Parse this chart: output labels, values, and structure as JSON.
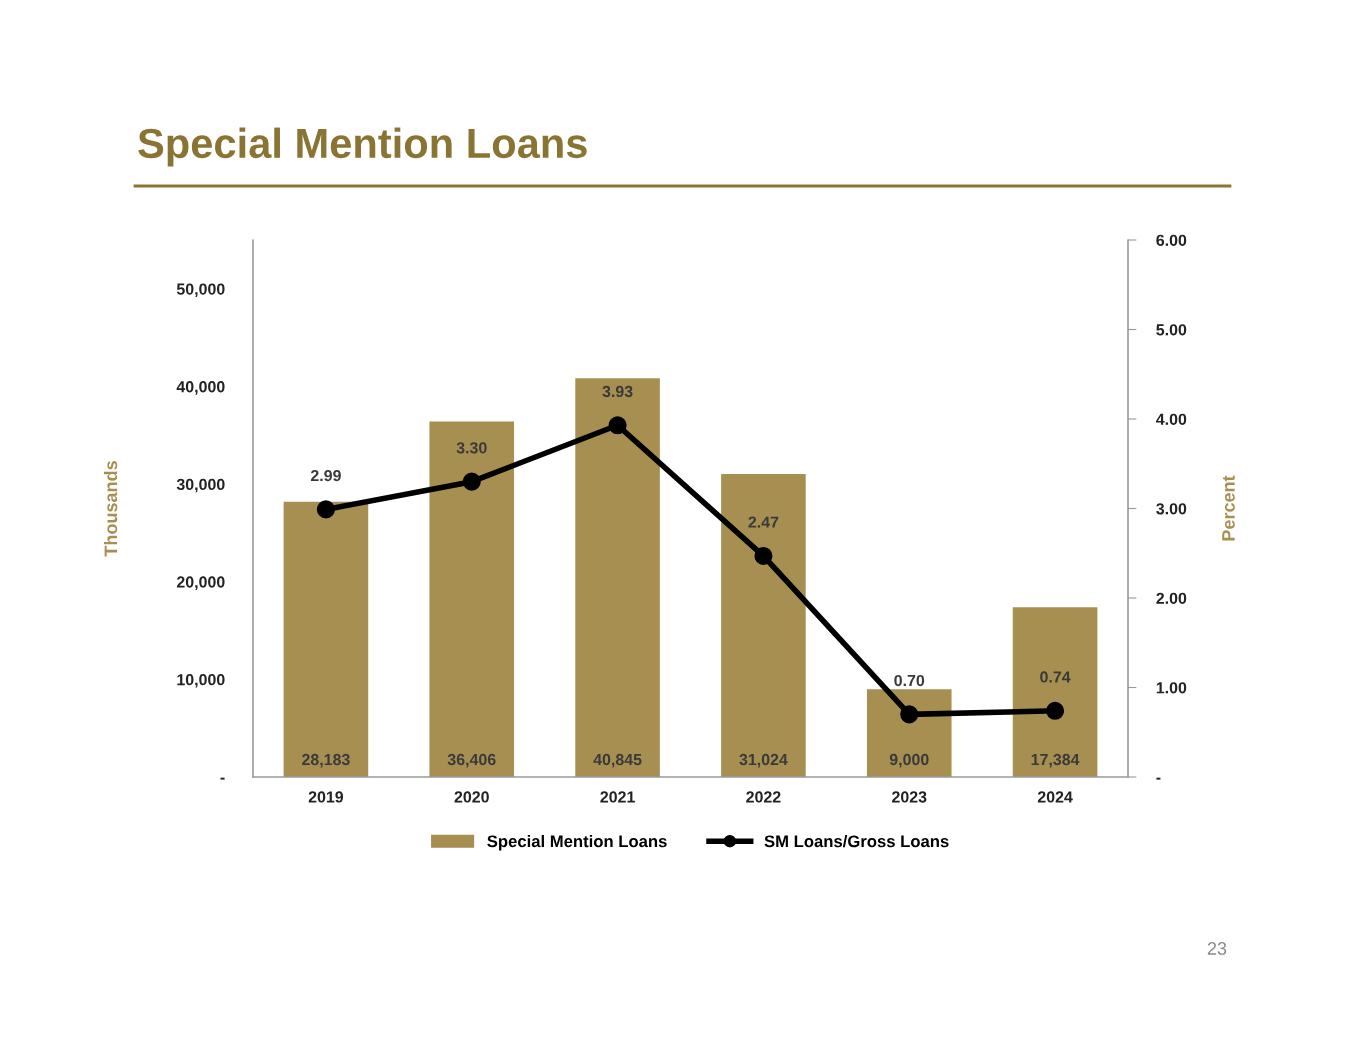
{
  "chart_data": {
    "type": "bar",
    "title": "Special Mention Loans",
    "categories": [
      "2019",
      "2020",
      "2021",
      "2022",
      "2023",
      "2024"
    ],
    "series": [
      {
        "name": "Special Mention Loans",
        "color": "#a68f50",
        "values": [
          28183,
          36406,
          40845,
          31024,
          9000,
          17384
        ],
        "value_labels": [
          "28,183",
          "36,406",
          "40,845",
          "31,024",
          "9,000",
          "17,384"
        ]
      },
      {
        "name": "SM Loans/Gross Loans",
        "type": "line",
        "axis": "y2",
        "color": "#000000",
        "values": [
          2.99,
          3.3,
          3.93,
          2.47,
          0.7,
          0.74
        ],
        "value_labels": [
          "2.99",
          "3.30",
          "3.93",
          "2.47",
          "0.70",
          "0.74"
        ]
      }
    ],
    "ylabel": "Thousands",
    "y2label": "Percent",
    "ylim": [
      0,
      55000
    ],
    "yticks": [
      {
        "value": 0,
        "label": "-"
      },
      {
        "value": 10000,
        "label": "10,000"
      },
      {
        "value": 20000,
        "label": "20,000"
      },
      {
        "value": 30000,
        "label": "30,000"
      },
      {
        "value": 40000,
        "label": "40,000"
      },
      {
        "value": 50000,
        "label": "50,000"
      }
    ],
    "y2lim": [
      0,
      6
    ],
    "y2ticks": [
      {
        "value": 0,
        "label": "-"
      },
      {
        "value": 1,
        "label": "1.00"
      },
      {
        "value": 2,
        "label": "2.00"
      },
      {
        "value": 3,
        "label": "3.00"
      },
      {
        "value": 4,
        "label": "4.00"
      },
      {
        "value": 5,
        "label": "5.00"
      },
      {
        "value": 6,
        "label": "6.00"
      }
    ],
    "marker": "circle",
    "line_style": "solid",
    "grid": false,
    "legend": "bottom",
    "annotations": [
      "23"
    ]
  }
}
